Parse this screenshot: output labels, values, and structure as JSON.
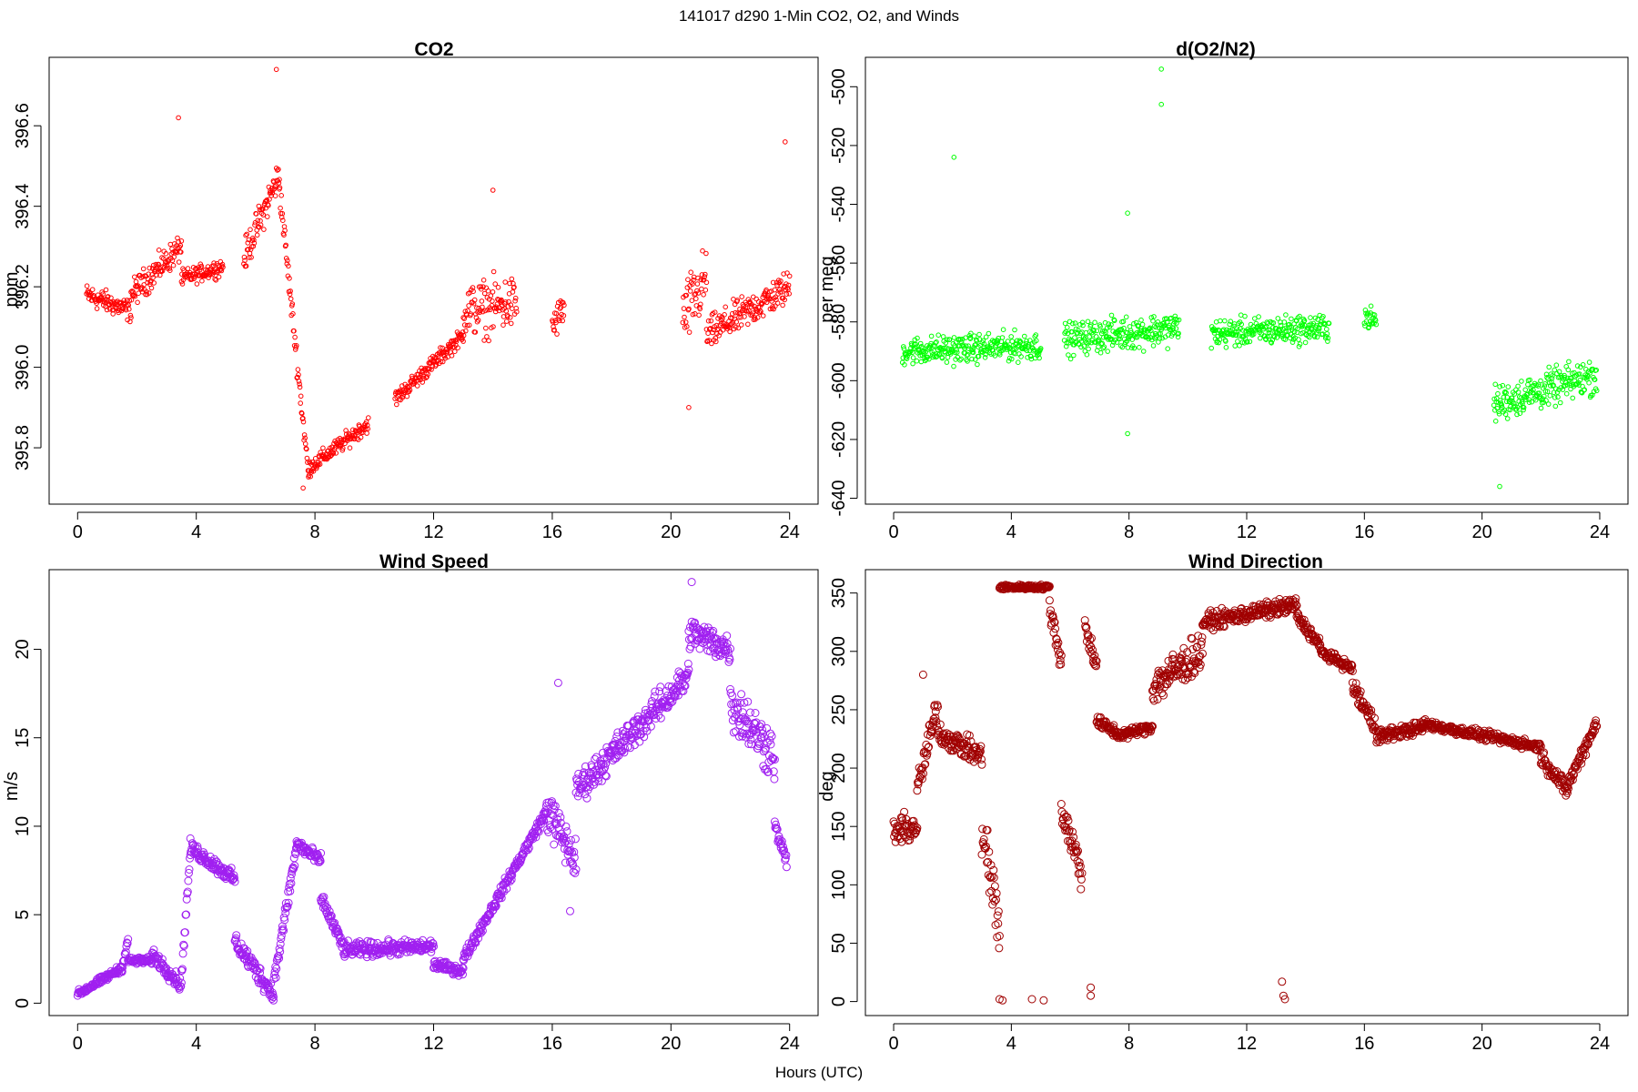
{
  "figure": {
    "suptitle": "141017   d290   1-Min CO2, O2, and Winds",
    "xlabel": "Hours (UTC)"
  },
  "chart_data": [
    {
      "id": "co2",
      "type": "scatter",
      "title": "CO2",
      "xlabel": "",
      "ylabel": "ppm",
      "color": "#ff0000",
      "xlim": [
        -0.96,
        24.96
      ],
      "ylim": [
        395.66,
        396.77
      ],
      "xticks": [
        0,
        4,
        8,
        12,
        16,
        20,
        24
      ],
      "yticks": [
        395.8,
        396.0,
        396.2,
        396.4,
        396.6
      ],
      "ytick_labels": [
        "395.8",
        "396.0",
        "396.2",
        "396.4",
        "396.6"
      ],
      "marker_size": "small",
      "segments": [
        {
          "x": [
            0.3,
            1.8
          ],
          "y": [
            396.18,
            396.14
          ],
          "noise": 0.04
        },
        {
          "x": [
            1.8,
            3.5
          ],
          "y": [
            396.18,
            396.3
          ],
          "noise": 0.05
        },
        {
          "x": [
            3.5,
            4.9
          ],
          "y": [
            396.22,
            396.25
          ],
          "noise": 0.03
        },
        {
          "x": [
            5.6,
            6.8
          ],
          "y": [
            396.27,
            396.48
          ],
          "noise": 0.06
        },
        {
          "x": [
            6.8,
            7.8
          ],
          "y": [
            396.45,
            395.72
          ],
          "noise": 0.05
        },
        {
          "x": [
            7.8,
            9.8
          ],
          "y": [
            395.75,
            395.86
          ],
          "noise": 0.03
        },
        {
          "x": [
            9.8,
            10.7
          ],
          "y": [],
          "noise": 0
        },
        {
          "x": [
            10.7,
            13.0
          ],
          "y": [
            395.92,
            396.08
          ],
          "noise": 0.03
        },
        {
          "x": [
            13.0,
            14.8
          ],
          "y": [
            396.14,
            396.16
          ],
          "noise": 0.1
        },
        {
          "x": [
            16.0,
            16.4
          ],
          "y": [
            396.1,
            396.15
          ],
          "noise": 0.06
        },
        {
          "x": [
            20.4,
            21.2
          ],
          "y": [
            396.12,
            396.22
          ],
          "noise": 0.12
        },
        {
          "x": [
            21.2,
            24.0
          ],
          "y": [
            396.08,
            396.2
          ],
          "noise": 0.06
        }
      ],
      "outliers": [
        {
          "x": 6.7,
          "y": 396.74
        },
        {
          "x": 3.4,
          "y": 396.62
        },
        {
          "x": 23.85,
          "y": 396.56
        },
        {
          "x": 14.0,
          "y": 396.44
        },
        {
          "x": 20.6,
          "y": 395.9
        },
        {
          "x": 7.6,
          "y": 395.7
        }
      ]
    },
    {
      "id": "o2n2",
      "type": "scatter",
      "title": "d(O2/N2)",
      "xlabel": "",
      "ylabel": "per meg",
      "color": "#00ff00",
      "xlim": [
        -0.96,
        24.96
      ],
      "ylim": [
        -642,
        -490
      ],
      "xticks": [
        0,
        4,
        8,
        12,
        16,
        20,
        24
      ],
      "yticks": [
        -640,
        -620,
        -600,
        -580,
        -560,
        -540,
        -520,
        -500
      ],
      "ytick_labels": [
        "-640",
        "-620",
        "-600",
        "-580",
        "-560",
        "-540",
        "-520",
        "-500"
      ],
      "marker_size": "small",
      "segments": [
        {
          "x": [
            0.3,
            5.0
          ],
          "y": [
            -590,
            -588
          ],
          "noise": 7
        },
        {
          "x": [
            5.8,
            9.7
          ],
          "y": [
            -586,
            -582
          ],
          "noise": 8
        },
        {
          "x": [
            10.8,
            14.8
          ],
          "y": [
            -584,
            -582
          ],
          "noise": 7
        },
        {
          "x": [
            16.0,
            16.4
          ],
          "y": [
            -578,
            -580
          ],
          "noise": 6
        },
        {
          "x": [
            20.4,
            23.9
          ],
          "y": [
            -608,
            -598
          ],
          "noise": 9
        }
      ],
      "outliers": [
        {
          "x": 9.1,
          "y": -494
        },
        {
          "x": 9.1,
          "y": -506
        },
        {
          "x": 2.05,
          "y": -524
        },
        {
          "x": 7.95,
          "y": -543
        },
        {
          "x": 7.95,
          "y": -618
        },
        {
          "x": 20.6,
          "y": -636
        }
      ]
    },
    {
      "id": "wspd",
      "type": "scatter",
      "title": "Wind Speed",
      "xlabel": "",
      "ylabel": "m/s",
      "color": "#a020f0",
      "xlim": [
        -0.96,
        24.96
      ],
      "ylim": [
        -0.7,
        24.5
      ],
      "xticks": [
        0,
        4,
        8,
        12,
        16,
        20,
        24
      ],
      "yticks": [
        0,
        5,
        10,
        15,
        20
      ],
      "ytick_labels": [
        "0",
        "5",
        "10",
        "15",
        "20"
      ],
      "marker_size": "large",
      "segments": [
        {
          "x": [
            0.0,
            1.5
          ],
          "y": [
            0.5,
            2.0
          ],
          "noise": 0.3
        },
        {
          "x": [
            1.5,
            1.7
          ],
          "y": [
            2.0,
            3.6
          ],
          "noise": 0.3
        },
        {
          "x": [
            1.7,
            2.5
          ],
          "y": [
            2.4,
            2.4
          ],
          "noise": 0.3
        },
        {
          "x": [
            2.5,
            3.5
          ],
          "y": [
            2.8,
            1.0
          ],
          "noise": 0.6
        },
        {
          "x": [
            3.5,
            3.8
          ],
          "y": [
            1.5,
            8.5
          ],
          "noise": 0.6
        },
        {
          "x": [
            3.8,
            5.3
          ],
          "y": [
            8.8,
            7.0
          ],
          "noise": 0.6
        },
        {
          "x": [
            5.3,
            6.6
          ],
          "y": [
            3.5,
            0.5
          ],
          "noise": 0.8
        },
        {
          "x": [
            6.6,
            7.4
          ],
          "y": [
            1.0,
            9.0
          ],
          "noise": 0.8
        },
        {
          "x": [
            7.4,
            8.2
          ],
          "y": [
            9.0,
            8.0
          ],
          "noise": 0.6
        },
        {
          "x": [
            8.2,
            9.0
          ],
          "y": [
            6.0,
            3.0
          ],
          "noise": 0.6
        },
        {
          "x": [
            9.0,
            12.0
          ],
          "y": [
            3.0,
            3.2
          ],
          "noise": 0.6
        },
        {
          "x": [
            12.0,
            13.0
          ],
          "y": [
            2.2,
            1.8
          ],
          "noise": 0.4
        },
        {
          "x": [
            13.0,
            15.8
          ],
          "y": [
            2.5,
            10.8
          ],
          "noise": 0.5
        },
        {
          "x": [
            15.8,
            16.8
          ],
          "y": [
            11.0,
            8.0
          ],
          "noise": 1.8
        },
        {
          "x": [
            16.8,
            20.6
          ],
          "y": [
            12.0,
            18.5
          ],
          "noise": 1.3
        },
        {
          "x": [
            20.6,
            22.0
          ],
          "y": [
            21.0,
            20.0
          ],
          "noise": 1.3
        },
        {
          "x": [
            22.0,
            23.5
          ],
          "y": [
            17.0,
            14.0
          ],
          "noise": 2.2
        },
        {
          "x": [
            23.5,
            23.9
          ],
          "y": [
            10.0,
            8.0
          ],
          "noise": 0.6
        }
      ],
      "outliers": [
        {
          "x": 20.7,
          "y": 23.8
        },
        {
          "x": 16.2,
          "y": 18.1
        },
        {
          "x": 16.6,
          "y": 5.2
        }
      ]
    },
    {
      "id": "wdir",
      "type": "scatter",
      "title": "Wind Direction",
      "xlabel": "",
      "ylabel": "deg",
      "color": "#a00000",
      "xlim": [
        -0.96,
        24.96
      ],
      "ylim": [
        -12,
        370
      ],
      "xticks": [
        0,
        4,
        8,
        12,
        16,
        20,
        24
      ],
      "yticks": [
        0,
        50,
        100,
        150,
        200,
        250,
        300,
        350
      ],
      "ytick_labels": [
        "0",
        "50",
        "100",
        "150",
        "200",
        "250",
        "300",
        "350"
      ],
      "marker_size": "large",
      "segments": [
        {
          "x": [
            0.0,
            0.8
          ],
          "y": [
            145,
            150
          ],
          "noise": 18
        },
        {
          "x": [
            0.8,
            1.5
          ],
          "y": [
            180,
            255
          ],
          "noise": 20
        },
        {
          "x": [
            1.5,
            3.0
          ],
          "y": [
            230,
            210
          ],
          "noise": 14
        },
        {
          "x": [
            3.0,
            3.6
          ],
          "y": [
            150,
            60
          ],
          "noise": 45
        },
        {
          "x": [
            3.6,
            5.3
          ],
          "y": [
            355,
            355
          ],
          "noise": 3
        },
        {
          "x": [
            5.3,
            5.7
          ],
          "y": [
            340,
            290
          ],
          "noise": 15
        },
        {
          "x": [
            5.7,
            6.4
          ],
          "y": [
            165,
            110
          ],
          "noise": 22
        },
        {
          "x": [
            6.5,
            6.9
          ],
          "y": [
            320,
            290
          ],
          "noise": 15
        },
        {
          "x": [
            6.9,
            7.6
          ],
          "y": [
            240,
            230
          ],
          "noise": 8
        },
        {
          "x": [
            7.6,
            8.8
          ],
          "y": [
            228,
            235
          ],
          "noise": 6
        },
        {
          "x": [
            8.8,
            10.5
          ],
          "y": [
            270,
            300
          ],
          "noise": 25
        },
        {
          "x": [
            10.5,
            13.7
          ],
          "y": [
            325,
            340
          ],
          "noise": 10
        },
        {
          "x": [
            13.7,
            14.5
          ],
          "y": [
            330,
            305
          ],
          "noise": 8
        },
        {
          "x": [
            14.5,
            15.6
          ],
          "y": [
            300,
            285
          ],
          "noise": 6
        },
        {
          "x": [
            15.6,
            16.6
          ],
          "y": [
            270,
            225
          ],
          "noise": 14
        },
        {
          "x": [
            16.6,
            18.0
          ],
          "y": [
            228,
            235
          ],
          "noise": 8
        },
        {
          "x": [
            18.0,
            22.0
          ],
          "y": [
            238,
            218
          ],
          "noise": 6
        },
        {
          "x": [
            22.0,
            22.9
          ],
          "y": [
            210,
            180
          ],
          "noise": 10
        },
        {
          "x": [
            22.9,
            23.9
          ],
          "y": [
            185,
            240
          ],
          "noise": 10
        }
      ],
      "outliers": [
        {
          "x": 3.6,
          "y": 2
        },
        {
          "x": 3.7,
          "y": 1
        },
        {
          "x": 4.7,
          "y": 2
        },
        {
          "x": 5.1,
          "y": 1
        },
        {
          "x": 6.7,
          "y": 12
        },
        {
          "x": 6.7,
          "y": 5
        },
        {
          "x": 13.2,
          "y": 17
        },
        {
          "x": 13.25,
          "y": 5
        },
        {
          "x": 13.3,
          "y": 2
        },
        {
          "x": 1.0,
          "y": 280
        }
      ]
    }
  ]
}
